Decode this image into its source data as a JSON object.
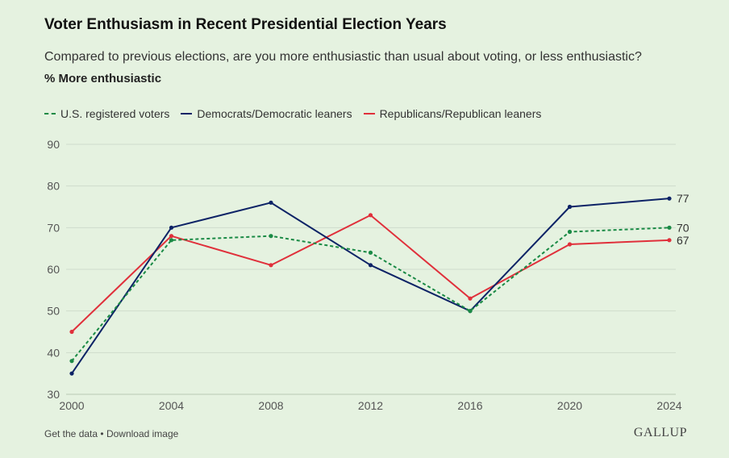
{
  "chart_data": {
    "type": "line",
    "title": "Voter Enthusiasm in Recent Presidential Election Years",
    "subtitle": "Compared to previous elections, are you more enthusiastic than usual about voting, or less enthusiastic?",
    "ylabel": "% More enthusiastic",
    "xlabel": "",
    "x": [
      "2000",
      "2004",
      "2008",
      "2012",
      "2016",
      "2020",
      "2024"
    ],
    "ylim": [
      30,
      90
    ],
    "yticks": [
      "30",
      "40",
      "50",
      "60",
      "70",
      "80",
      "90"
    ],
    "grid": true,
    "legend_position": "top-left",
    "series": [
      {
        "name": "U.S. registered voters",
        "color": "#1a8a45",
        "dashed": true,
        "values": [
          38,
          67,
          68,
          64,
          50,
          69,
          70
        ],
        "end_label": "70"
      },
      {
        "name": "Democrats/Democratic leaners",
        "color": "#0d2366",
        "dashed": false,
        "values": [
          35,
          70,
          76,
          61,
          50,
          75,
          77
        ],
        "end_label": "77"
      },
      {
        "name": "Republicans/Republican leaners",
        "color": "#e0303b",
        "dashed": false,
        "values": [
          45,
          68,
          61,
          73,
          53,
          66,
          67
        ],
        "end_label": "67"
      }
    ]
  },
  "footer": {
    "get_data": "Get the data",
    "separator": "•",
    "download": "Download image",
    "brand": "GALLUP"
  }
}
